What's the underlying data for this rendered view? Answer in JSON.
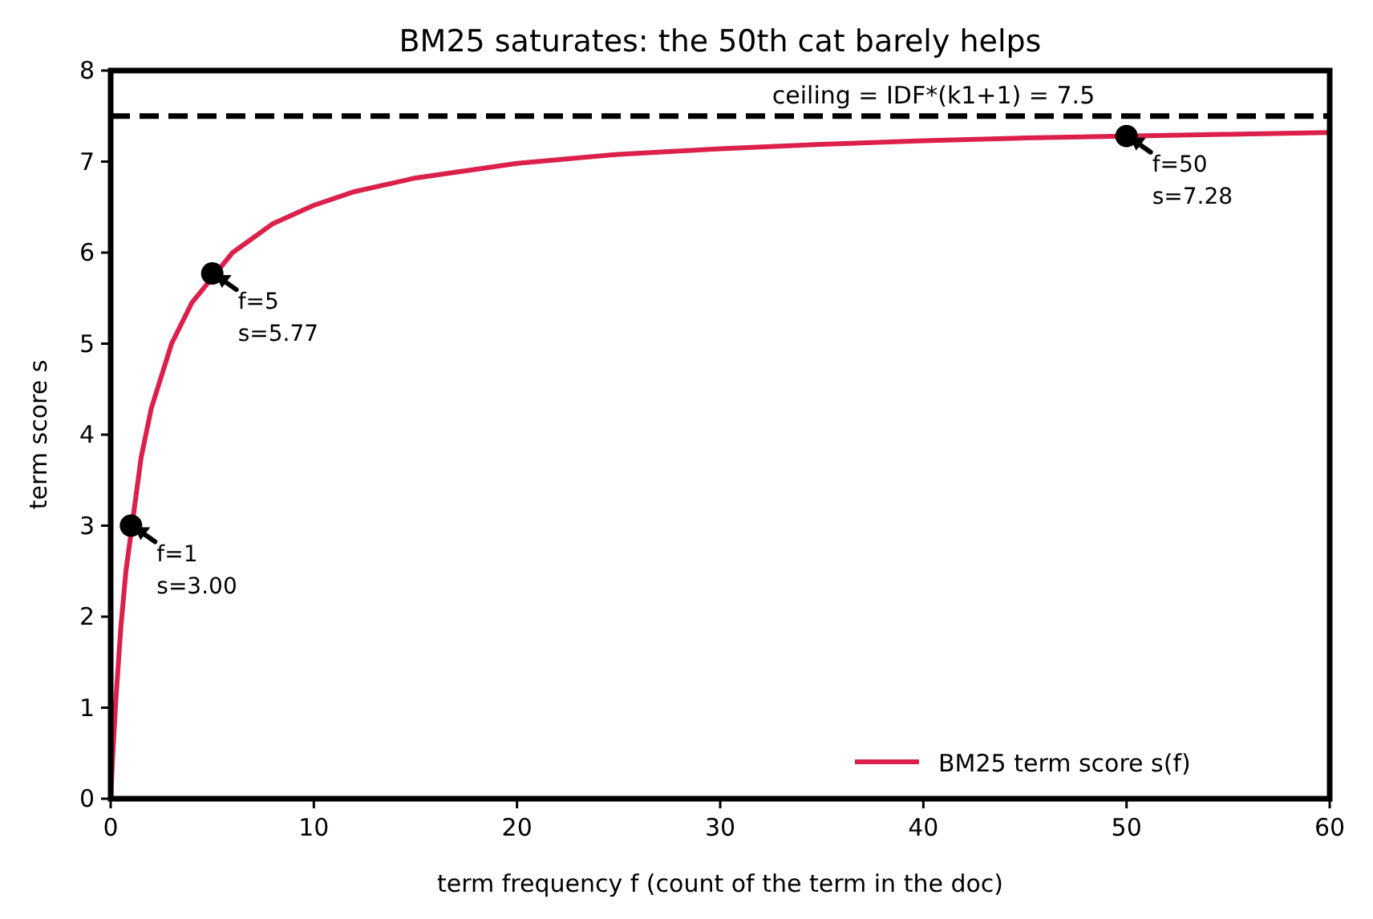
{
  "chart_data": {
    "type": "line",
    "title": "BM25 saturates: the 50th cat barely helps",
    "xlabel": "term frequency  f (count of the term in the doc)",
    "ylabel": "term score  s",
    "series": [
      {
        "name": "BM25 term score s(f)",
        "color": "#dc1f4b",
        "x": [
          0,
          0.1,
          0.25,
          0.5,
          0.75,
          1.5,
          2,
          3,
          4,
          6,
          8,
          10,
          12,
          15,
          20,
          25,
          30,
          35,
          40,
          45,
          55,
          60
        ],
        "values": [
          0,
          0.47,
          1.07,
          1.88,
          2.5,
          3.75,
          4.29,
          5.0,
          5.45,
          6.0,
          6.32,
          6.52,
          6.67,
          6.82,
          6.98,
          7.08,
          7.14,
          7.19,
          7.23,
          7.26,
          7.3,
          7.32
        ]
      },
      {
        "type": "scatter",
        "color": "#000000",
        "marker": "circle",
        "x": [
          1,
          5,
          50
        ],
        "values": [
          3.0,
          5.77,
          7.28
        ]
      }
    ],
    "annotations": [
      {
        "text": "f=1\ns=3.00",
        "x": 1,
        "y": 3.0
      },
      {
        "text": "f=5\ns=5.77",
        "x": 5,
        "y": 5.77
      },
      {
        "text": "f=50\ns=7.28",
        "x": 50,
        "y": 7.28
      }
    ],
    "ref_lines": [
      {
        "axis": "y",
        "value": 7.5,
        "label": "ceiling = IDF*(k1+1) = 7.5",
        "color": "#000000",
        "line_style": "dashed"
      }
    ],
    "xlim": [
      0,
      60
    ],
    "xticks": [
      0,
      10,
      20,
      30,
      40,
      50,
      60
    ],
    "ylim": [
      0,
      8
    ],
    "yticks": [
      0,
      1,
      2,
      3,
      4,
      5,
      6,
      7,
      8
    ],
    "legend": "bottom right",
    "grid": false
  }
}
